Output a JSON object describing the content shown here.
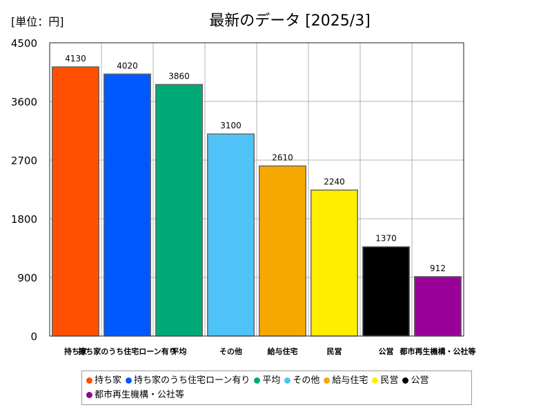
{
  "unit_label": "[単位：円]",
  "chart_data": {
    "type": "bar",
    "title": "最新のデータ [2025/3]",
    "categories": [
      "持ち家",
      "持ち家のうち住宅ローン有り",
      "平均",
      "その他",
      "給与住宅",
      "民営",
      "公営",
      "都市再生機構・公社等"
    ],
    "x_tick_labels": [
      "持ち家",
      "持ち家のうち住宅ローン有り",
      "平均",
      "その他",
      "給与住宅",
      "民営",
      "公営",
      "都市再生機構・公社等"
    ],
    "values": [
      4130,
      4020,
      3860,
      3100,
      2610,
      2240,
      1370,
      912
    ],
    "value_labels": [
      "4130",
      "4020",
      "3860",
      "3100",
      "2610",
      "2240",
      "1370",
      "912"
    ],
    "colors": [
      "#ff4f00",
      "#0058ff",
      "#00aa77",
      "#4fc3f7",
      "#f7a800",
      "#ffee00",
      "#000000",
      "#990099"
    ],
    "ylim": [
      0,
      4500
    ],
    "y_ticks": [
      0,
      900,
      1800,
      2700,
      3600,
      4500
    ],
    "grid": true,
    "legend_position": "bottom"
  },
  "legend": [
    {
      "label": "持ち家",
      "color": "#ff4f00"
    },
    {
      "label": "持ち家のうち住宅ローン有り",
      "color": "#0058ff"
    },
    {
      "label": "平均",
      "color": "#00aa77"
    },
    {
      "label": "その他",
      "color": "#4fc3f7"
    },
    {
      "label": "給与住宅",
      "color": "#f7a800"
    },
    {
      "label": "民営",
      "color": "#ffee00"
    },
    {
      "label": "公営",
      "color": "#000000"
    },
    {
      "label": "都市再生機構・公社等",
      "color": "#990099"
    }
  ]
}
